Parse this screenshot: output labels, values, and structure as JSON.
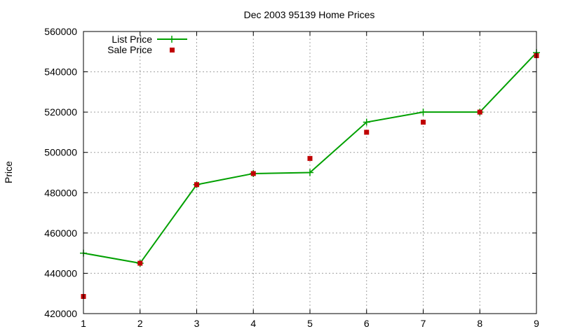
{
  "chart_data": {
    "type": "line",
    "title": "Dec 2003 95139 Home Prices",
    "xlabel": "",
    "ylabel": "Price",
    "x": [
      1,
      2,
      3,
      4,
      5,
      6,
      7,
      8,
      9
    ],
    "xlim": [
      1,
      9
    ],
    "ylim": [
      420000,
      560000
    ],
    "xticks": [
      "1",
      "2",
      "3",
      "4",
      "5",
      "6",
      "7",
      "8",
      "9"
    ],
    "yticks": [
      "420000",
      "440000",
      "460000",
      "480000",
      "500000",
      "520000",
      "540000",
      "560000"
    ],
    "grid": true,
    "legend_position": "top-left",
    "series": [
      {
        "name": "List Price",
        "kind": "line-with-plus-markers",
        "color": "#00a000",
        "values": [
          450000,
          445000,
          484000,
          489500,
          490000,
          515000,
          520000,
          520000,
          549500
        ]
      },
      {
        "name": "Sale Price",
        "kind": "square-markers",
        "color": "#c00000",
        "values": [
          428500,
          445000,
          484000,
          489500,
          497000,
          510000,
          515000,
          520000,
          548000
        ]
      }
    ]
  }
}
